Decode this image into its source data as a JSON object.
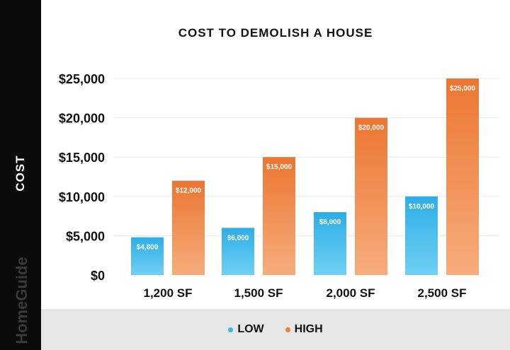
{
  "brand": "HomeGuide",
  "colors": {
    "low": "#3cb5e8",
    "high": "#ee7f3c",
    "band": "#e6e6e6"
  },
  "chart_data": {
    "type": "bar",
    "title": "COST TO DEMOLISH A HOUSE",
    "ylabel": "COST",
    "xlabel": "",
    "ylim": [
      0,
      25000
    ],
    "yticks": [
      0,
      5000,
      10000,
      15000,
      20000,
      25000
    ],
    "ytick_labels": [
      "$0",
      "$5,000",
      "$10,000",
      "$15,000",
      "$20,000",
      "$25,000"
    ],
    "categories": [
      "1,200 SF",
      "1,500 SF",
      "2,000 SF",
      "2,500 SF"
    ],
    "series": [
      {
        "name": "LOW",
        "values": [
          4800,
          6000,
          8000,
          10000
        ],
        "labels": [
          "$4,800",
          "$6,000",
          "$8,000",
          "$10,000"
        ]
      },
      {
        "name": "HIGH",
        "values": [
          12000,
          15000,
          20000,
          25000
        ],
        "labels": [
          "$12,000",
          "$15,000",
          "$20,000",
          "$25,000"
        ]
      }
    ],
    "grid": true,
    "legend": "bottom"
  }
}
